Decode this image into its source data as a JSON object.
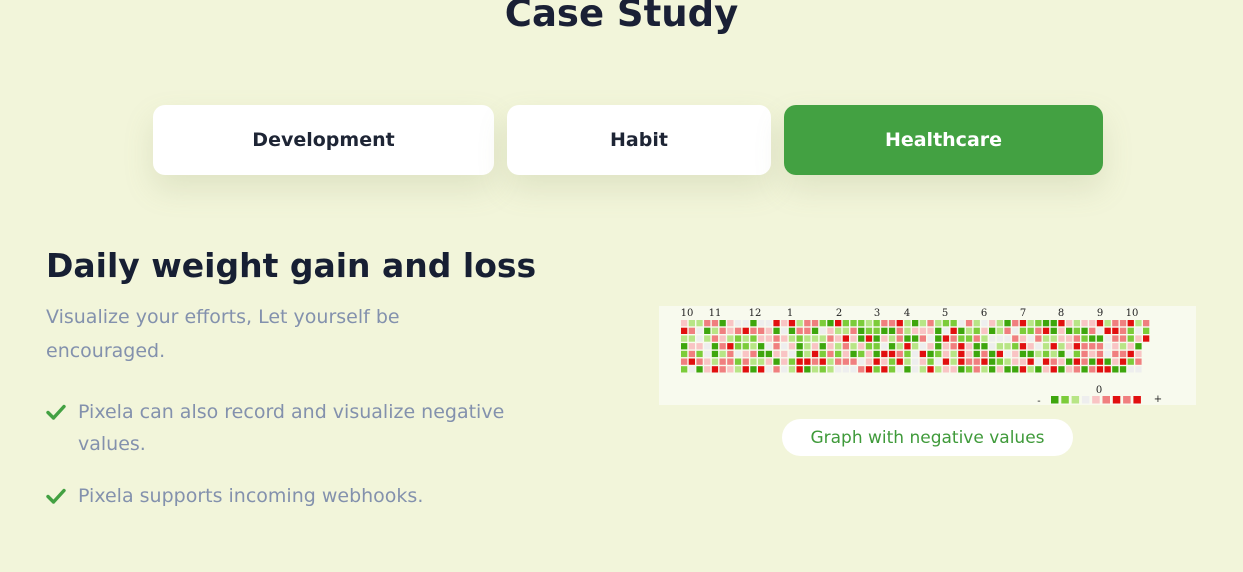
{
  "page": {
    "title": "Case Study"
  },
  "tabs": [
    {
      "label": "Development",
      "active": false
    },
    {
      "label": "Habit",
      "active": false
    },
    {
      "label": "Healthcare",
      "active": true
    }
  ],
  "content": {
    "heading": "Daily weight gain and loss",
    "lead": "Visualize your efforts, Let yourself be encouraged.",
    "features": [
      "Pixela can also record and visualize negative values.",
      "Pixela supports incoming webhooks."
    ]
  },
  "graph": {
    "caption": "Graph with negative values",
    "month_labels": [
      "10",
      "11",
      "12",
      "1",
      "2",
      "3",
      "4",
      "5",
      "6",
      "7",
      "8",
      "9",
      "10"
    ],
    "legend": {
      "minus": "-",
      "zero": "0",
      "plus": "+"
    },
    "colors": {
      "green_dark": "#3ea60d",
      "green": "#7ccc3a",
      "green_light": "#b8e586",
      "neutral": "#eeeeee",
      "red_light": "#f9c4c4",
      "red": "#f07f7f",
      "red_dark": "#e10f0f"
    }
  },
  "colors": {
    "accent": "#43a142",
    "background": "#f2f5da",
    "muted_text": "#8391ad"
  }
}
